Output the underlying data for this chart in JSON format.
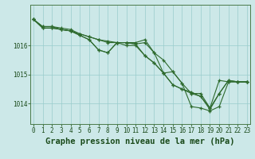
{
  "title": "Graphe pression niveau de la mer (hPa)",
  "x": [
    0,
    1,
    2,
    3,
    4,
    5,
    6,
    7,
    8,
    9,
    10,
    11,
    12,
    13,
    14,
    15,
    16,
    17,
    18,
    19,
    20,
    21,
    22,
    23
  ],
  "series": [
    [
      1016.9,
      1016.65,
      1016.65,
      1016.55,
      1016.5,
      1016.4,
      1016.3,
      1016.2,
      1016.15,
      1016.1,
      1016.1,
      1016.05,
      1016.1,
      1015.75,
      1015.05,
      1015.1,
      1014.7,
      1014.35,
      1014.35,
      1013.85,
      1014.8,
      1014.75,
      1014.75,
      1014.75
    ],
    [
      1016.9,
      1016.65,
      1016.65,
      1016.6,
      1016.55,
      1016.4,
      1016.3,
      1016.2,
      1016.1,
      1016.1,
      1016.1,
      1016.1,
      1016.2,
      1015.75,
      1015.5,
      1015.1,
      1014.7,
      1013.9,
      1013.85,
      1013.75,
      1013.9,
      1014.75,
      1014.75,
      1014.75
    ],
    [
      1016.9,
      1016.6,
      1016.6,
      1016.55,
      1016.5,
      1016.35,
      1016.2,
      1015.85,
      1015.75,
      1016.1,
      1016.1,
      1016.05,
      1015.65,
      1015.4,
      1015.05,
      1014.65,
      1014.5,
      1014.4,
      1014.25,
      1013.85,
      1014.35,
      1014.8,
      1014.75,
      1014.75
    ],
    [
      1016.9,
      1016.6,
      1016.6,
      1016.55,
      1016.5,
      1016.35,
      1016.2,
      1015.85,
      1015.75,
      1016.1,
      1016.0,
      1016.0,
      1015.65,
      1015.4,
      1015.05,
      1014.65,
      1014.5,
      1014.35,
      1014.25,
      1013.8,
      1014.35,
      1014.8,
      1014.75,
      1014.75
    ]
  ],
  "line_color": "#2d6a2d",
  "marker_color": "#2d6a2d",
  "bg_color": "#cce8e8",
  "grid_color": "#99cccc",
  "axis_label_color": "#1a4a1a",
  "yticks": [
    1014,
    1015,
    1016
  ],
  "ylim": [
    1013.3,
    1017.4
  ],
  "xlim": [
    -0.3,
    23.3
  ],
  "xtick_labels": [
    "0",
    "1",
    "2",
    "3",
    "4",
    "5",
    "6",
    "7",
    "8",
    "9",
    "10",
    "11",
    "12",
    "13",
    "14",
    "15",
    "16",
    "17",
    "18",
    "19",
    "20",
    "21",
    "22",
    "23"
  ],
  "title_fontsize": 7.5,
  "tick_fontsize": 5.5
}
